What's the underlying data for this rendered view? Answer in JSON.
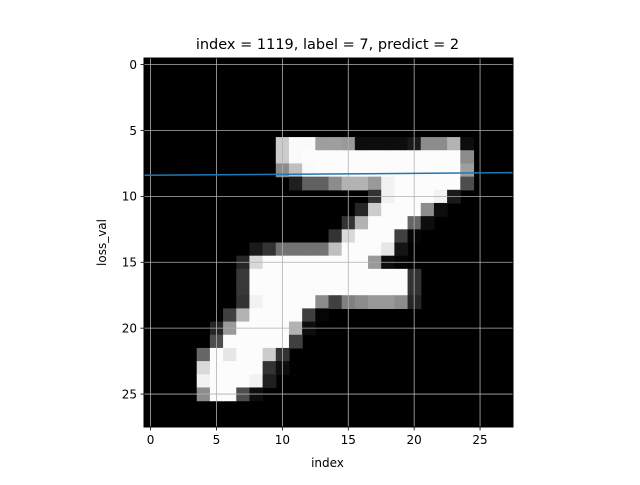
{
  "chart_data": {
    "type": "heatmap",
    "title": "index = 1119, label = 7, predict = 2",
    "xlabel": "index",
    "ylabel": "loss_val",
    "xlim": [
      -0.5,
      27.5
    ],
    "ylim": [
      27.5,
      -0.5
    ],
    "y_inverted": true,
    "grid": true,
    "colormap": "gray",
    "x_ticks": [
      0,
      5,
      10,
      15,
      20,
      25
    ],
    "y_ticks": [
      0,
      5,
      10,
      15,
      20,
      25
    ],
    "image_rows": 28,
    "image_cols": 28,
    "pixels": [
      {
        "row": 6,
        "cols": [
          10,
          11,
          12,
          13,
          14,
          15,
          16,
          17,
          18,
          19,
          20,
          21,
          22,
          23,
          24
        ],
        "values": [
          0.8,
          0.98,
          0.98,
          0.62,
          0.62,
          0.6,
          0.05,
          0.05,
          0.05,
          0.05,
          0.1,
          0.55,
          0.55,
          0.7,
          0.05
        ]
      },
      {
        "row": 7,
        "cols": [
          10,
          11,
          12,
          13,
          14,
          15,
          16,
          17,
          18,
          19,
          20,
          21,
          22,
          23,
          24
        ],
        "values": [
          0.8,
          0.98,
          0.99,
          0.99,
          0.99,
          0.99,
          0.99,
          0.99,
          0.99,
          0.99,
          0.99,
          0.99,
          0.99,
          0.99,
          0.55
        ]
      },
      {
        "row": 8,
        "cols": [
          10,
          11,
          12,
          13,
          14,
          15,
          16,
          17,
          18,
          19,
          20,
          21,
          22,
          23,
          24
        ],
        "values": [
          0.55,
          0.75,
          0.98,
          0.99,
          0.99,
          0.99,
          0.99,
          0.99,
          0.99,
          0.99,
          0.99,
          0.99,
          0.99,
          0.99,
          0.62
        ]
      },
      {
        "row": 9,
        "cols": [
          11,
          12,
          13,
          14,
          15,
          16,
          17,
          18,
          19,
          20,
          21,
          22,
          23,
          24
        ],
        "values": [
          0.12,
          0.38,
          0.38,
          0.55,
          0.7,
          0.7,
          0.6,
          0.95,
          0.99,
          0.99,
          0.99,
          0.99,
          0.99,
          0.3
        ]
      },
      {
        "row": 10,
        "cols": [
          17,
          18,
          19,
          20,
          21,
          22,
          23
        ],
        "values": [
          0.2,
          0.95,
          0.99,
          0.99,
          0.99,
          0.95,
          0.1
        ]
      },
      {
        "row": 11,
        "cols": [
          16,
          17,
          18,
          19,
          20,
          21,
          22
        ],
        "values": [
          0.15,
          0.8,
          0.99,
          0.99,
          0.99,
          0.55,
          0.05
        ]
      },
      {
        "row": 12,
        "cols": [
          15,
          16,
          17,
          18,
          19,
          20,
          21
        ],
        "values": [
          0.2,
          0.7,
          0.99,
          0.99,
          0.99,
          0.4,
          0.05
        ]
      },
      {
        "row": 13,
        "cols": [
          14,
          15,
          16,
          17,
          18,
          19,
          20
        ],
        "values": [
          0.2,
          0.85,
          0.99,
          0.99,
          0.99,
          0.25,
          0.02
        ]
      },
      {
        "row": 14,
        "cols": [
          8,
          9,
          10,
          11,
          12,
          13,
          14,
          15,
          16,
          17,
          18,
          19
        ],
        "values": [
          0.1,
          0.2,
          0.45,
          0.45,
          0.45,
          0.45,
          0.75,
          0.99,
          0.99,
          0.99,
          0.9,
          0.08
        ]
      },
      {
        "row": 15,
        "cols": [
          7,
          8,
          9,
          10,
          11,
          12,
          13,
          14,
          15,
          16,
          17,
          18,
          19
        ],
        "values": [
          0.15,
          0.85,
          0.99,
          0.99,
          0.99,
          0.99,
          0.99,
          0.99,
          0.99,
          0.99,
          0.6,
          0.05,
          0.02
        ]
      },
      {
        "row": 16,
        "cols": [
          7,
          8,
          9,
          10,
          11,
          12,
          13,
          14,
          15,
          16,
          17,
          18,
          19,
          20
        ],
        "values": [
          0.22,
          0.99,
          0.99,
          0.99,
          0.99,
          0.99,
          0.99,
          0.99,
          0.99,
          0.99,
          0.99,
          0.99,
          0.99,
          0.2
        ]
      },
      {
        "row": 17,
        "cols": [
          7,
          8,
          9,
          10,
          11,
          12,
          13,
          14,
          15,
          16,
          17,
          18,
          19,
          20
        ],
        "values": [
          0.22,
          0.99,
          0.99,
          0.99,
          0.99,
          0.99,
          0.99,
          0.99,
          0.99,
          0.99,
          0.99,
          0.99,
          0.99,
          0.2
        ]
      },
      {
        "row": 18,
        "cols": [
          7,
          8,
          9,
          10,
          11,
          12,
          13,
          14,
          15,
          16,
          17,
          18,
          19,
          20
        ],
        "values": [
          0.2,
          0.95,
          0.99,
          0.99,
          0.99,
          0.99,
          0.55,
          0.25,
          0.5,
          0.55,
          0.6,
          0.6,
          0.55,
          0.15
        ]
      },
      {
        "row": 19,
        "cols": [
          6,
          7,
          8,
          9,
          10,
          11,
          12,
          13
        ],
        "values": [
          0.25,
          0.7,
          0.99,
          0.99,
          0.99,
          0.99,
          0.25,
          0.02
        ]
      },
      {
        "row": 20,
        "cols": [
          5,
          6,
          7,
          8,
          9,
          10,
          11,
          12
        ],
        "values": [
          0.15,
          0.6,
          0.99,
          0.99,
          0.99,
          0.99,
          0.7,
          0.05
        ]
      },
      {
        "row": 21,
        "cols": [
          5,
          6,
          7,
          8,
          9,
          10,
          11
        ],
        "values": [
          0.3,
          0.99,
          0.99,
          0.99,
          0.99,
          0.99,
          0.25
        ]
      },
      {
        "row": 22,
        "cols": [
          4,
          5,
          6,
          7,
          8,
          9,
          10
        ],
        "values": [
          0.4,
          0.99,
          0.9,
          0.99,
          0.99,
          0.8,
          0.2
        ]
      },
      {
        "row": 23,
        "cols": [
          4,
          5,
          6,
          7,
          8,
          9,
          10
        ],
        "values": [
          0.85,
          0.99,
          0.99,
          0.99,
          0.99,
          0.2,
          0.05
        ]
      },
      {
        "row": 24,
        "cols": [
          4,
          5,
          6,
          7,
          8,
          9
        ],
        "values": [
          0.95,
          0.99,
          0.99,
          0.99,
          0.95,
          0.12
        ]
      },
      {
        "row": 25,
        "cols": [
          4,
          5,
          6,
          7,
          8
        ],
        "values": [
          0.55,
          0.99,
          0.99,
          0.3,
          0.05
        ]
      }
    ],
    "series": [
      {
        "type": "line",
        "color": "#1f77b4",
        "x": [
          -0.5,
          27.5
        ],
        "y": [
          8.4,
          8.2
        ]
      }
    ]
  }
}
